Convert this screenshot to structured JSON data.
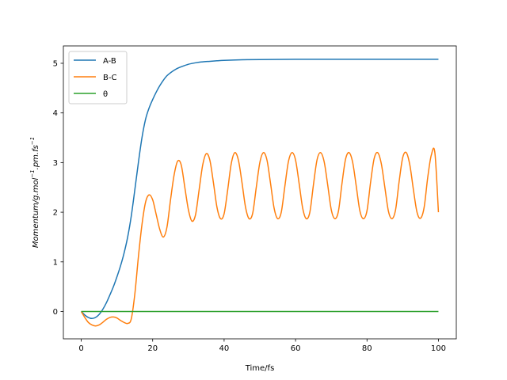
{
  "chart_data": {
    "type": "line",
    "title": "",
    "xlabel": "Time/fs",
    "ylabel": {
      "base": "Momentum/g.mol",
      "sup1": "−1",
      "mid": ".pm.fs",
      "sup2": "−1"
    },
    "xlim": [
      -5,
      105
    ],
    "ylim": [
      -0.55,
      5.35
    ],
    "xticks": [
      0,
      20,
      40,
      60,
      80,
      100
    ],
    "yticks": [
      0,
      1,
      2,
      3,
      4,
      5
    ],
    "xtick_labels": [
      "0",
      "20",
      "40",
      "60",
      "80",
      "100"
    ],
    "ytick_labels": [
      "0",
      "1",
      "2",
      "3",
      "4",
      "5"
    ],
    "grid": false,
    "legend_position": "top-left",
    "series": [
      {
        "name": "A-B",
        "color": "#1f77b4",
        "x": [
          0,
          1,
          2,
          3,
          4,
          5,
          6,
          7,
          8,
          9,
          10,
          11,
          12,
          13,
          14,
          15,
          16,
          17,
          18,
          19,
          20,
          21,
          22,
          23,
          24,
          25,
          26,
          27,
          28,
          30,
          32,
          34,
          36,
          38,
          40,
          45,
          50,
          60,
          70,
          80,
          90,
          100
        ],
        "y": [
          0,
          -0.07,
          -0.12,
          -0.14,
          -0.12,
          -0.06,
          0.04,
          0.17,
          0.33,
          0.5,
          0.7,
          0.92,
          1.18,
          1.5,
          1.92,
          2.45,
          3.0,
          3.5,
          3.87,
          4.1,
          4.27,
          4.42,
          4.55,
          4.66,
          4.75,
          4.81,
          4.86,
          4.9,
          4.93,
          4.98,
          5.01,
          5.03,
          5.04,
          5.05,
          5.06,
          5.07,
          5.075,
          5.08,
          5.08,
          5.08,
          5.08,
          5.08
        ]
      },
      {
        "name": "B-C",
        "color": "#ff7f0e",
        "x": [
          0,
          1,
          2,
          3,
          4,
          5,
          6,
          7,
          8,
          9,
          10,
          11,
          12,
          13,
          14,
          15,
          16,
          17,
          18,
          19,
          20,
          21,
          22,
          23,
          24,
          25,
          26,
          27,
          28,
          29,
          30,
          31,
          32,
          33,
          34,
          35,
          36,
          37,
          38,
          39,
          40,
          41,
          42,
          43,
          44,
          45,
          46,
          47,
          48,
          49,
          50,
          51,
          52,
          53,
          54,
          55,
          56,
          57,
          58,
          59,
          60,
          61,
          62,
          63,
          64,
          65,
          66,
          67,
          68,
          69,
          70,
          71,
          72,
          73,
          74,
          75,
          76,
          77,
          78,
          79,
          80,
          81,
          82,
          83,
          84,
          85,
          86,
          87,
          88,
          89,
          90,
          91,
          92,
          93,
          94,
          95,
          96,
          97,
          98,
          99,
          100
        ],
        "y": [
          0,
          -0.12,
          -0.22,
          -0.27,
          -0.29,
          -0.27,
          -0.22,
          -0.16,
          -0.12,
          -0.11,
          -0.13,
          -0.18,
          -0.22,
          -0.24,
          -0.15,
          0.35,
          1.1,
          1.75,
          2.2,
          2.35,
          2.25,
          1.95,
          1.65,
          1.5,
          1.7,
          2.25,
          2.75,
          3.03,
          2.95,
          2.5,
          2.05,
          1.82,
          1.95,
          2.45,
          2.95,
          3.18,
          3.05,
          2.6,
          2.1,
          1.87,
          1.97,
          2.45,
          2.98,
          3.2,
          3.05,
          2.6,
          2.1,
          1.87,
          1.98,
          2.5,
          3.0,
          3.2,
          3.05,
          2.58,
          2.08,
          1.87,
          2.0,
          2.52,
          3.02,
          3.2,
          3.05,
          2.58,
          2.08,
          1.87,
          2.0,
          2.55,
          3.05,
          3.2,
          3.02,
          2.55,
          2.05,
          1.87,
          2.02,
          2.58,
          3.07,
          3.2,
          3.0,
          2.52,
          2.03,
          1.87,
          2.03,
          2.6,
          3.08,
          3.2,
          2.98,
          2.5,
          2.02,
          1.87,
          2.05,
          2.62,
          3.1,
          3.2,
          2.95,
          2.45,
          2.0,
          1.88,
          2.1,
          2.7,
          3.15,
          3.2,
          2.0
        ]
      },
      {
        "name": "θ",
        "color": "#2ca02c",
        "x": [
          0,
          100
        ],
        "y": [
          0,
          0
        ]
      }
    ]
  }
}
